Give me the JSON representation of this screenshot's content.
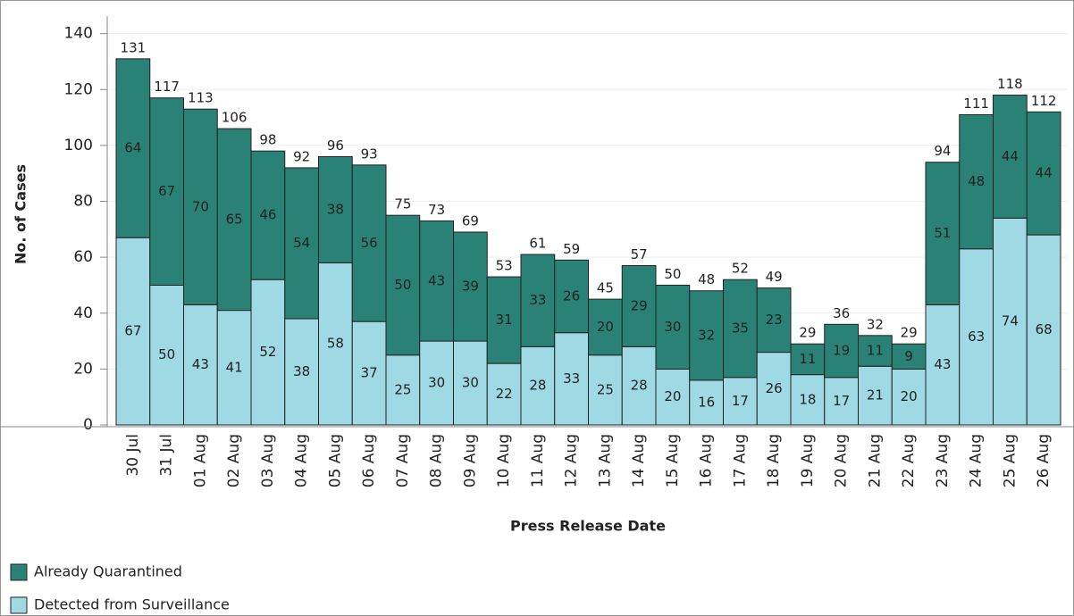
{
  "chart_data": {
    "type": "stacked_bar",
    "x_label": "Press Release Date",
    "y_label": "No. of Cases",
    "categories": [
      "30 Jul",
      "31 Jul",
      "01 Aug",
      "02 Aug",
      "03 Aug",
      "04 Aug",
      "05 Aug",
      "06 Aug",
      "07 Aug",
      "08 Aug",
      "09 Aug",
      "10 Aug",
      "11 Aug",
      "12 Aug",
      "13 Aug",
      "14 Aug",
      "15 Aug",
      "16 Aug",
      "17 Aug",
      "18 Aug",
      "19 Aug",
      "20 Aug",
      "21 Aug",
      "22 Aug",
      "23 Aug",
      "24 Aug",
      "25 Aug",
      "26 Aug"
    ],
    "series": [
      {
        "name": "Detected from Surveillance",
        "color": "#9ed9e4",
        "values": [
          67,
          50,
          43,
          41,
          52,
          38,
          58,
          37,
          25,
          30,
          30,
          22,
          28,
          33,
          25,
          28,
          20,
          16,
          17,
          26,
          18,
          17,
          21,
          20,
          43,
          63,
          74,
          68
        ]
      },
      {
        "name": "Already Quarantined",
        "color": "#2a8175",
        "values": [
          64,
          67,
          70,
          65,
          46,
          54,
          38,
          56,
          50,
          43,
          39,
          31,
          33,
          26,
          20,
          29,
          30,
          32,
          35,
          23,
          11,
          19,
          11,
          9,
          51,
          48,
          44,
          44
        ]
      }
    ],
    "totals": [
      131,
      117,
      113,
      106,
      98,
      92,
      96,
      93,
      75,
      73,
      69,
      53,
      61,
      59,
      45,
      57,
      50,
      48,
      52,
      49,
      29,
      36,
      32,
      29,
      94,
      111,
      118,
      112
    ],
    "ylim": [
      0,
      145
    ],
    "yticks": [
      0,
      20,
      40,
      60,
      80,
      100,
      120,
      140
    ],
    "grid": true
  }
}
